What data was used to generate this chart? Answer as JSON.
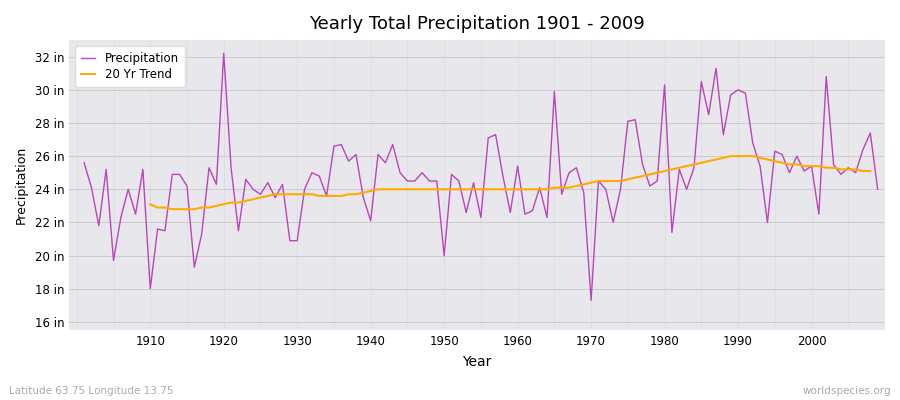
{
  "title": "Yearly Total Precipitation 1901 - 2009",
  "xlabel": "Year",
  "ylabel": "Precipitation",
  "lat_lon_label": "Latitude 63.75 Longitude 13.75",
  "watermark": "worldspecies.org",
  "background_color": "#ffffff",
  "plot_bg_color": "#e8e8ec",
  "precipitation_color": "#bb44bb",
  "trend_color": "#ffaa00",
  "years": [
    1901,
    1902,
    1903,
    1904,
    1905,
    1906,
    1907,
    1908,
    1909,
    1910,
    1911,
    1912,
    1913,
    1914,
    1915,
    1916,
    1917,
    1918,
    1919,
    1920,
    1921,
    1922,
    1923,
    1924,
    1925,
    1926,
    1927,
    1928,
    1929,
    1930,
    1931,
    1932,
    1933,
    1934,
    1935,
    1936,
    1937,
    1938,
    1939,
    1940,
    1941,
    1942,
    1943,
    1944,
    1945,
    1946,
    1947,
    1948,
    1949,
    1950,
    1951,
    1952,
    1953,
    1954,
    1955,
    1956,
    1957,
    1958,
    1959,
    1960,
    1961,
    1962,
    1963,
    1964,
    1965,
    1966,
    1967,
    1968,
    1969,
    1970,
    1971,
    1972,
    1973,
    1974,
    1975,
    1976,
    1977,
    1978,
    1979,
    1980,
    1981,
    1982,
    1983,
    1984,
    1985,
    1986,
    1987,
    1988,
    1989,
    1990,
    1991,
    1992,
    1993,
    1994,
    1995,
    1996,
    1997,
    1998,
    1999,
    2000,
    2001,
    2002,
    2003,
    2004,
    2005,
    2006,
    2007,
    2008,
    2009
  ],
  "precipitation": [
    25.6,
    24.1,
    21.8,
    25.2,
    19.7,
    22.3,
    24.0,
    22.5,
    25.2,
    18.0,
    21.6,
    21.5,
    24.9,
    24.9,
    24.2,
    19.3,
    21.3,
    25.3,
    24.3,
    32.2,
    25.3,
    21.5,
    24.6,
    24.0,
    23.7,
    24.4,
    23.5,
    24.3,
    20.9,
    20.9,
    24.0,
    25.0,
    24.8,
    23.6,
    26.6,
    26.7,
    25.7,
    26.1,
    23.5,
    22.1,
    26.1,
    25.6,
    26.7,
    25.0,
    24.5,
    24.5,
    25.0,
    24.5,
    24.5,
    20.0,
    24.9,
    24.5,
    22.6,
    24.4,
    22.3,
    27.1,
    27.3,
    24.8,
    22.6,
    25.4,
    22.5,
    22.7,
    24.1,
    22.3,
    29.9,
    23.7,
    25.0,
    25.3,
    23.8,
    17.3,
    24.5,
    24.0,
    22.0,
    24.0,
    28.1,
    28.2,
    25.5,
    24.2,
    24.5,
    30.3,
    21.4,
    25.2,
    24.0,
    25.3,
    30.5,
    28.5,
    31.3,
    27.3,
    29.7,
    30.0,
    29.8,
    26.8,
    25.4,
    22.0,
    26.3,
    26.1,
    25.0,
    26.0,
    25.1,
    25.4,
    22.5,
    30.8,
    25.5,
    24.9,
    25.3,
    25.0,
    26.4,
    27.4,
    24.0
  ],
  "trend": [
    null,
    null,
    null,
    null,
    null,
    null,
    null,
    null,
    null,
    23.1,
    22.9,
    22.9,
    22.8,
    22.8,
    22.8,
    22.8,
    22.9,
    22.9,
    23.0,
    23.1,
    23.2,
    23.2,
    23.3,
    23.4,
    23.5,
    23.6,
    23.7,
    23.7,
    23.7,
    23.7,
    23.7,
    23.7,
    23.6,
    23.6,
    23.6,
    23.6,
    23.7,
    23.7,
    23.8,
    23.9,
    24.0,
    24.0,
    24.0,
    24.0,
    24.0,
    24.0,
    24.0,
    24.0,
    24.0,
    24.0,
    24.0,
    24.0,
    24.0,
    24.0,
    24.0,
    24.0,
    24.0,
    24.0,
    24.0,
    24.0,
    24.0,
    24.0,
    24.0,
    24.0,
    24.1,
    24.1,
    24.1,
    24.2,
    24.3,
    24.4,
    24.5,
    24.5,
    24.5,
    24.5,
    24.6,
    24.7,
    24.8,
    24.9,
    25.0,
    25.1,
    25.2,
    25.3,
    25.4,
    25.5,
    25.6,
    25.7,
    25.8,
    25.9,
    26.0,
    26.0,
    26.0,
    26.0,
    25.9,
    25.8,
    25.7,
    25.6,
    25.5,
    25.5,
    25.4,
    25.4,
    25.4,
    25.3,
    25.3,
    25.2,
    25.2,
    25.2,
    25.1,
    25.1
  ],
  "ylim": [
    15.5,
    33
  ],
  "yticks": [
    16,
    18,
    20,
    22,
    24,
    26,
    28,
    30,
    32
  ],
  "ytick_labels": [
    "16 in",
    "18 in",
    "20 in",
    "22 in",
    "24 in",
    "26 in",
    "28 in",
    "30 in",
    "32 in"
  ],
  "xlim": [
    1899,
    2010
  ],
  "xticks": [
    1910,
    1920,
    1930,
    1940,
    1950,
    1960,
    1970,
    1980,
    1990,
    2000
  ],
  "grid_color": "#cccccc",
  "grid_color_major": "#cccccc",
  "figsize": [
    9.0,
    4.0
  ],
  "dpi": 100
}
